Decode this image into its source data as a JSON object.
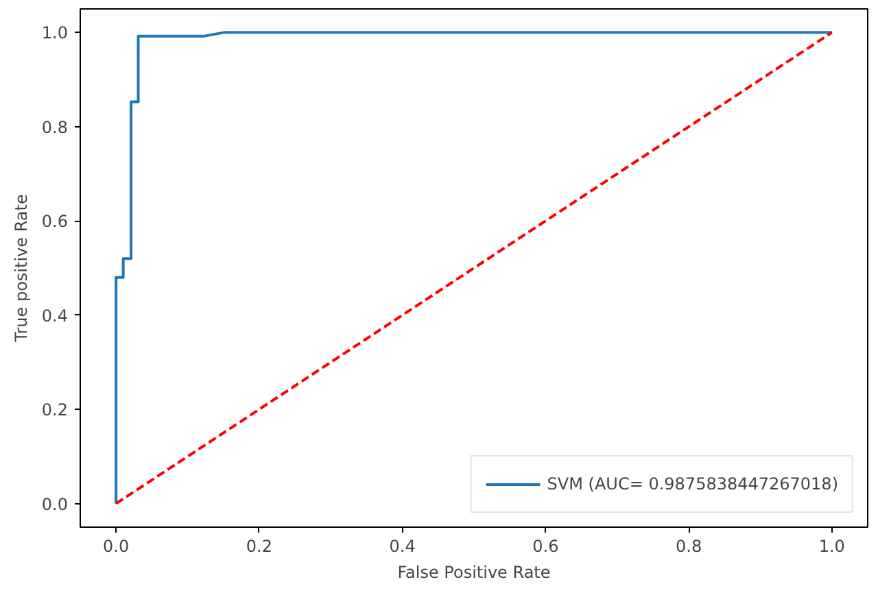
{
  "chart_data": {
    "type": "line",
    "xlabel": "False Positive Rate",
    "ylabel": "True positive Rate",
    "xlim": [
      -0.05,
      1.05
    ],
    "ylim": [
      -0.05,
      1.05
    ],
    "xticks": [
      {
        "value": 0,
        "label": "0.0"
      },
      {
        "value": 0.2,
        "label": "0.2"
      },
      {
        "value": 0.4,
        "label": "0.4"
      },
      {
        "value": 0.6,
        "label": "0.6"
      },
      {
        "value": 0.8,
        "label": "0.8"
      },
      {
        "value": 1,
        "label": "1.0"
      }
    ],
    "yticks": [
      {
        "value": 0,
        "label": "0.0"
      },
      {
        "value": 0.2,
        "label": "0.2"
      },
      {
        "value": 0.4,
        "label": "0.4"
      },
      {
        "value": 0.6,
        "label": "0.6"
      },
      {
        "value": 0.8,
        "label": "0.8"
      },
      {
        "value": 1,
        "label": "1.0"
      }
    ],
    "grid": false,
    "legend": "bottom right",
    "series": [
      {
        "name": "SVM (AUC= 0.9875838447267018)",
        "color": "#1f77b4",
        "line_style": "solid",
        "x": [
          0,
          0,
          0.01,
          0.01,
          0.021,
          0.021,
          0.031,
          0.031,
          0.122,
          0.151,
          1
        ],
        "values": [
          0,
          0.48,
          0.48,
          0.52,
          0.52,
          0.853,
          0.853,
          0.992,
          0.992,
          1,
          1
        ]
      },
      {
        "color": "#ff0000",
        "line_style": "dashed",
        "x": [
          0,
          1
        ],
        "values": [
          0,
          1
        ]
      }
    ]
  }
}
